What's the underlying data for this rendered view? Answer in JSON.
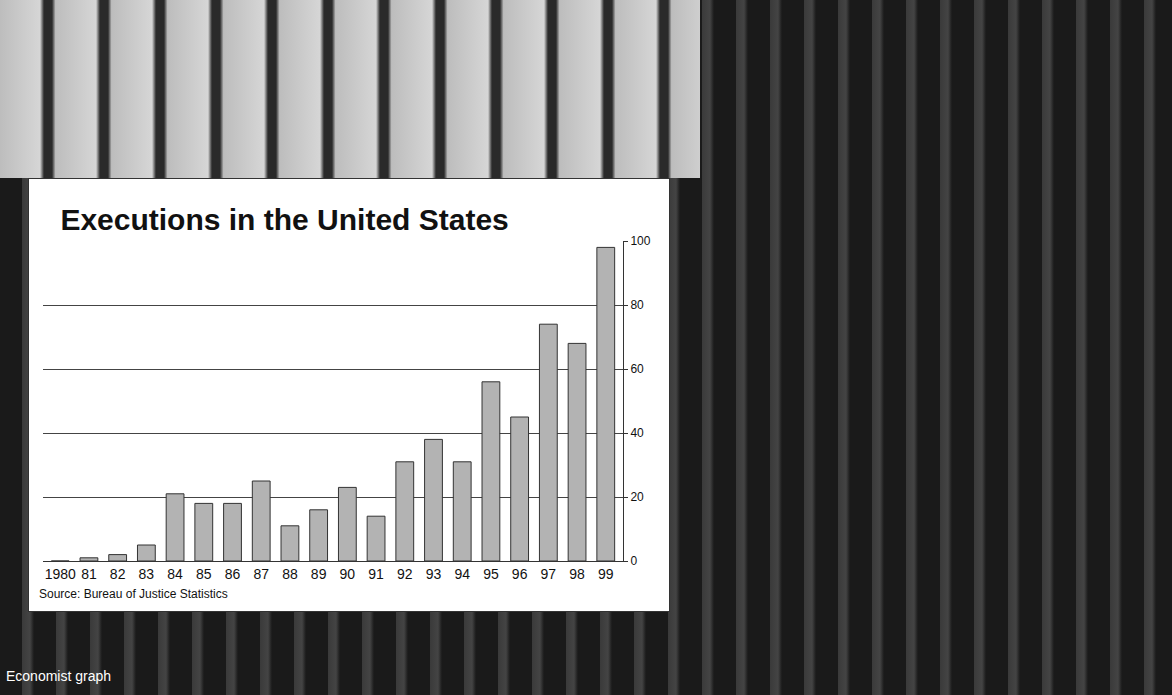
{
  "chart_data": {
    "type": "bar",
    "title": "Executions in the United States",
    "categories": [
      "1980",
      "81",
      "82",
      "83",
      "84",
      "85",
      "86",
      "87",
      "88",
      "89",
      "90",
      "91",
      "92",
      "93",
      "94",
      "95",
      "96",
      "97",
      "98",
      "99"
    ],
    "values": [
      0,
      1,
      2,
      5,
      21,
      18,
      18,
      25,
      11,
      16,
      23,
      14,
      31,
      38,
      31,
      56,
      45,
      74,
      68,
      98
    ],
    "color": "#b3b3b3",
    "ylim": [
      0,
      100
    ],
    "yticks": [
      0,
      20,
      40,
      60,
      80,
      100
    ],
    "grid": true,
    "annotations": [
      "Source: Bureau of Justice Statistics"
    ],
    "caption": "Economist graph"
  }
}
